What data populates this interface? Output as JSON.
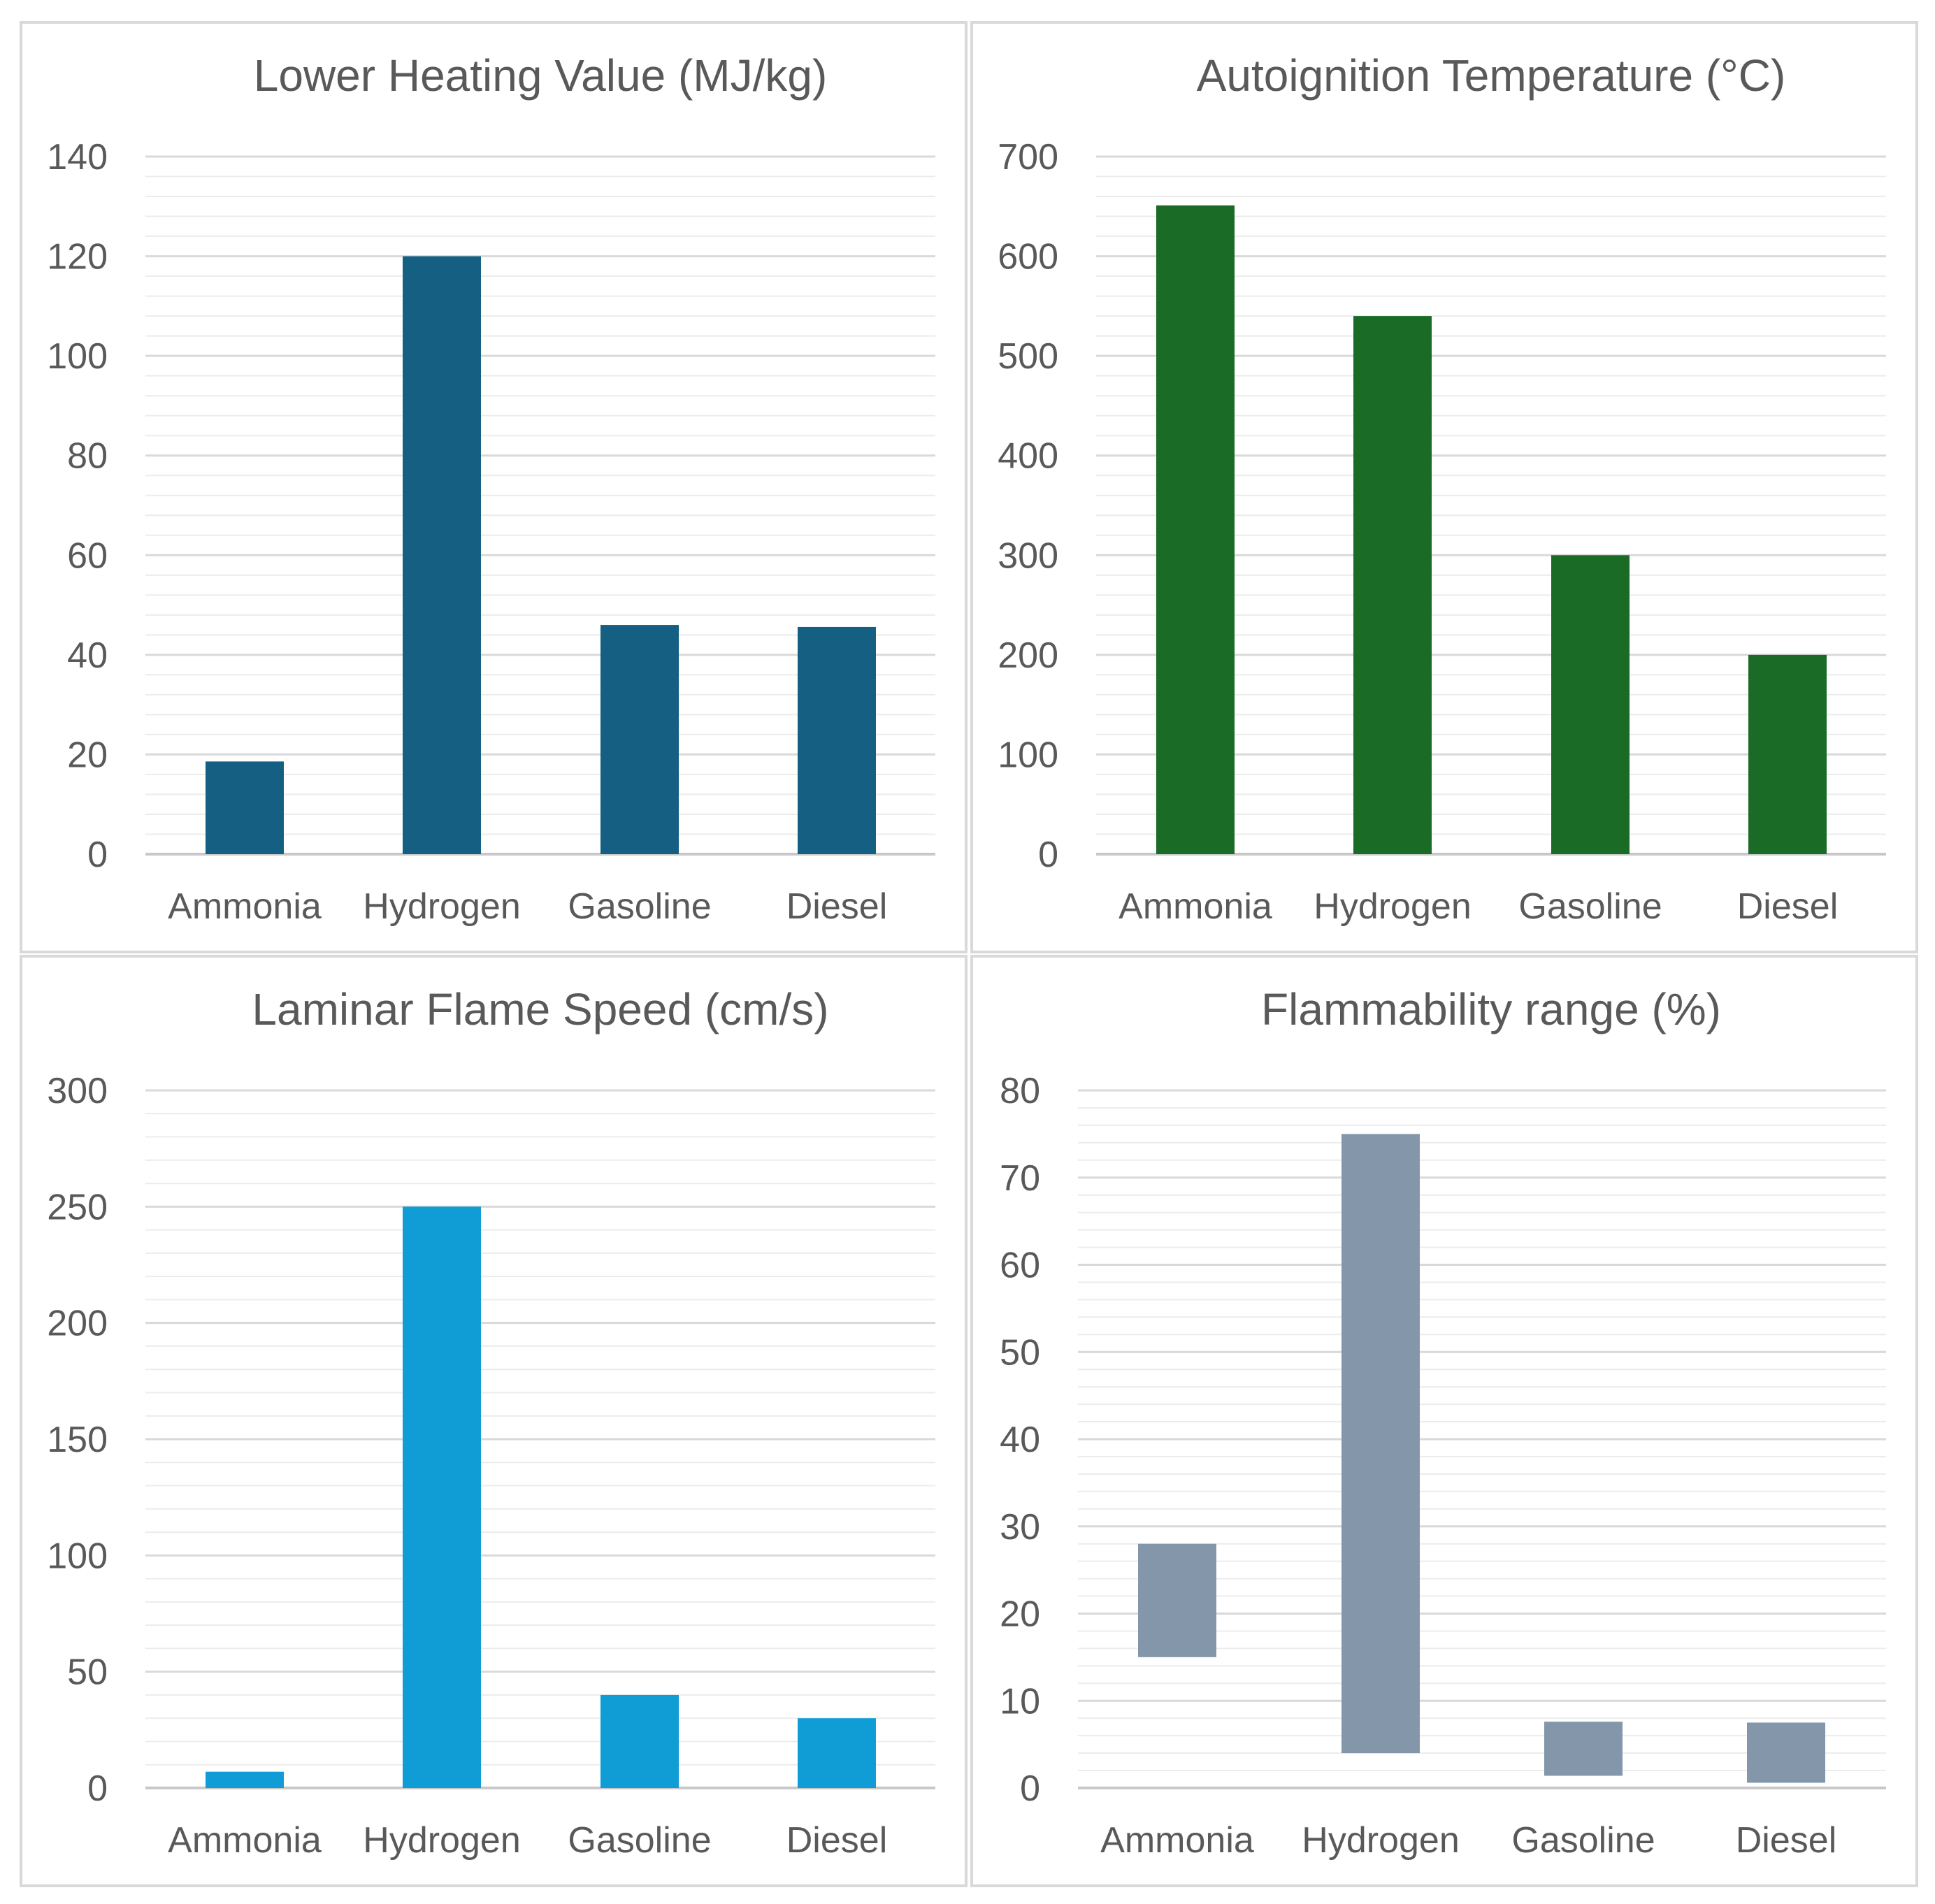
{
  "chart_data": [
    {
      "type": "bar",
      "title": "Lower Heating Value (MJ/kg)",
      "categories": [
        "Ammonia",
        "Hydrogen",
        "Gasoline",
        "Diesel"
      ],
      "values": [
        18.6,
        120,
        46,
        45.6
      ],
      "ylim": [
        0,
        140
      ],
      "yticks": [
        "0",
        "20",
        "40",
        "60",
        "80",
        "100",
        "120",
        "140"
      ],
      "minor_grid_step": 4,
      "color": "#155F82",
      "xlabel": "",
      "ylabel": "",
      "grid": true,
      "legend": "none"
    },
    {
      "type": "bar",
      "title": "Autoignition Temperature (°C)",
      "categories": [
        "Ammonia",
        "Hydrogen",
        "Gasoline",
        "Diesel"
      ],
      "values": [
        651,
        540,
        300,
        200
      ],
      "ylim": [
        0,
        700
      ],
      "yticks": [
        "0",
        "100",
        "200",
        "300",
        "400",
        "500",
        "600",
        "700"
      ],
      "minor_grid_step": 20,
      "color": "#1A6B25",
      "xlabel": "",
      "ylabel": "",
      "grid": true,
      "legend": "none"
    },
    {
      "type": "bar",
      "title": "Laminar Flame Speed (cm/s)",
      "categories": [
        "Ammonia",
        "Hydrogen",
        "Gasoline",
        "Diesel"
      ],
      "values": [
        7,
        250,
        40,
        30
      ],
      "ylim": [
        0,
        300
      ],
      "yticks": [
        "0",
        "50",
        "100",
        "150",
        "200",
        "250",
        "300"
      ],
      "minor_grid_step": 10,
      "color": "#109DD6",
      "xlabel": "",
      "ylabel": "",
      "grid": true,
      "legend": "none"
    },
    {
      "type": "bar",
      "subtype": "floating-range",
      "title": "Flammability range (%)",
      "categories": [
        "Ammonia",
        "Hydrogen",
        "Gasoline",
        "Diesel"
      ],
      "ranges": [
        [
          15,
          28
        ],
        [
          4,
          75
        ],
        [
          1.4,
          7.6
        ],
        [
          0.6,
          7.5
        ]
      ],
      "ylim": [
        0,
        80
      ],
      "yticks": [
        "0",
        "10",
        "20",
        "30",
        "40",
        "50",
        "60",
        "70",
        "80"
      ],
      "minor_grid_step": 2,
      "color": "#8497AA",
      "xlabel": "",
      "ylabel": "",
      "grid": true,
      "legend": "none"
    }
  ]
}
